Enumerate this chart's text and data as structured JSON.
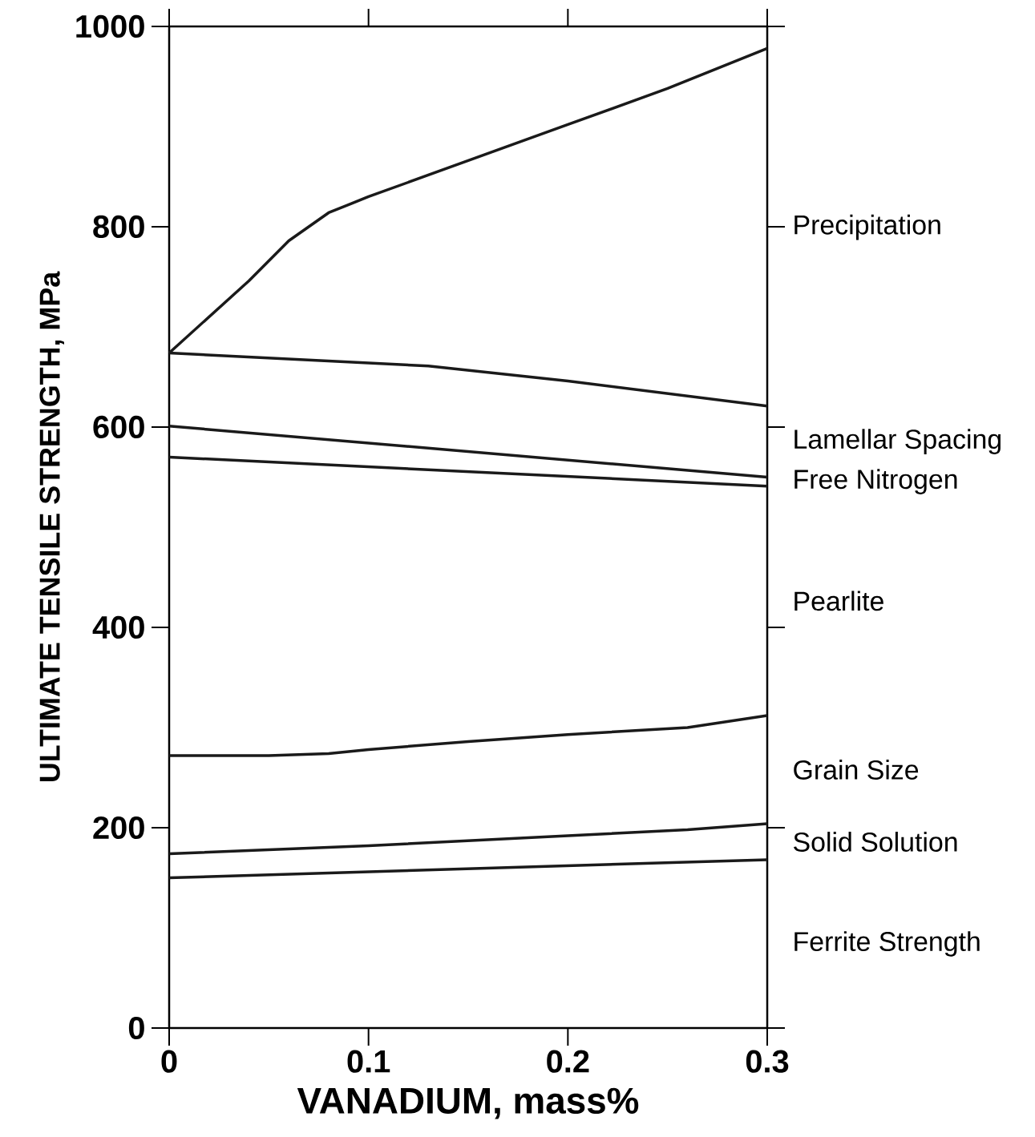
{
  "chart_data": {
    "type": "line",
    "xlabel": "VANADIUM, mass%",
    "ylabel": "ULTIMATE TENSILE STRENGTH, MPa",
    "xlim": [
      0,
      0.3
    ],
    "ylim": [
      0,
      1000
    ],
    "xticks": [
      0,
      0.1,
      0.2,
      0.3
    ],
    "yticks": [
      0,
      200,
      400,
      600,
      800,
      1000
    ],
    "grid": false,
    "marker": "none",
    "line_style": "solid",
    "series": [
      {
        "color": "#1a1a1a",
        "x": [
          0,
          0.3
        ],
        "values": [
          150,
          168
        ]
      },
      {
        "color": "#1a1a1a",
        "x": [
          0,
          0.1,
          0.2,
          0.26,
          0.3
        ],
        "values": [
          174,
          182,
          192,
          198,
          204
        ]
      },
      {
        "color": "#1a1a1a",
        "x": [
          0,
          0.05,
          0.08,
          0.1,
          0.15,
          0.2,
          0.26,
          0.3
        ],
        "values": [
          272,
          272,
          274,
          278,
          286,
          293,
          300,
          312
        ]
      },
      {
        "color": "#1a1a1a",
        "x": [
          0,
          0.3
        ],
        "values": [
          570,
          541
        ]
      },
      {
        "color": "#1a1a1a",
        "x": [
          0,
          0.3
        ],
        "values": [
          601,
          550
        ]
      },
      {
        "color": "#1a1a1a",
        "x": [
          0,
          0.05,
          0.1,
          0.13,
          0.2,
          0.3
        ],
        "values": [
          674,
          669,
          664,
          661,
          646,
          621
        ]
      },
      {
        "color": "#1a1a1a",
        "x": [
          0,
          0.02,
          0.04,
          0.06,
          0.08,
          0.1,
          0.15,
          0.2,
          0.25,
          0.3
        ],
        "values": [
          674,
          710,
          746,
          786,
          814,
          830,
          866,
          902,
          938,
          978
        ]
      }
    ],
    "annotations": [
      "Precipitation",
      "Lamellar Spacing",
      "Free Nitrogen",
      "Pearlite",
      "Grain Size",
      "Solid Solution",
      "Ferrite Strength"
    ]
  }
}
